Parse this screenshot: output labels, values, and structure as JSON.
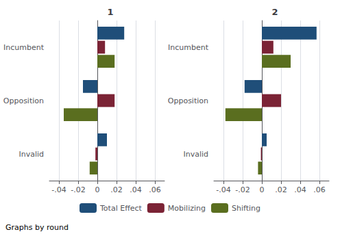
{
  "chart_data": [
    {
      "type": "bar",
      "title": "1",
      "orientation": "horizontal",
      "categories": [
        "Incumbent",
        "Opposition",
        "Invalid"
      ],
      "series": [
        {
          "name": "Total Effect",
          "color": "#1f4e79",
          "values": [
            0.028,
            -0.015,
            0.01
          ]
        },
        {
          "name": "Mobilizing",
          "color": "#7b2335",
          "values": [
            0.008,
            0.018,
            -0.002
          ]
        },
        {
          "name": "Shifting",
          "color": "#5a6e1f",
          "values": [
            0.018,
            -0.035,
            -0.008
          ]
        }
      ],
      "xlim": [
        -0.05,
        0.07
      ],
      "xticks": [
        {
          "value": -0.04,
          "label": "-.04"
        },
        {
          "value": -0.02,
          "label": "-.02"
        },
        0,
        {
          "value": 0.02,
          "label": ".02"
        },
        {
          "value": 0.04,
          "label": ".04"
        },
        {
          "value": 0.06,
          "label": ".06"
        }
      ],
      "grid": true,
      "legend": "bottom",
      "annotation": "Graphs by round"
    },
    {
      "type": "bar",
      "title": "2",
      "orientation": "horizontal",
      "categories": [
        "Incumbent",
        "Opposition",
        "Invalid"
      ],
      "series": [
        {
          "name": "Total Effect",
          "color": "#1f4e79",
          "values": [
            0.057,
            -0.018,
            0.005
          ]
        },
        {
          "name": "Mobilizing",
          "color": "#7b2335",
          "values": [
            0.012,
            0.02,
            -0.001
          ]
        },
        {
          "name": "Shifting",
          "color": "#5a6e1f",
          "values": [
            0.03,
            -0.038,
            -0.004
          ]
        }
      ],
      "xlim": [
        -0.05,
        0.07
      ],
      "xticks": [
        {
          "value": -0.04,
          "label": "-.04"
        },
        {
          "value": -0.02,
          "label": "-.02"
        },
        0,
        {
          "value": 0.02,
          "label": ".02"
        },
        {
          "value": 0.04,
          "label": ".04"
        },
        {
          "value": 0.06,
          "label": ".06"
        }
      ],
      "grid": true,
      "legend": "bottom"
    }
  ]
}
